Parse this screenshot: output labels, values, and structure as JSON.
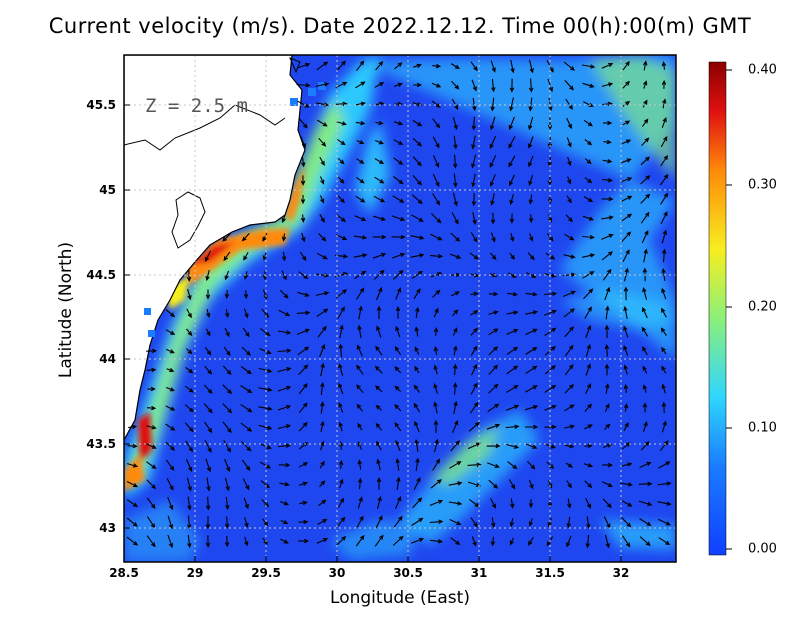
{
  "map": {
    "title": "Current velocity (m/s). Date 2022.12.12. Time 00(h):00(m) GMT",
    "xlabel": "Longitude (East)",
    "ylabel": "Latitude (North)",
    "depth_label": "Z = 2.5 m",
    "x_ticks": [
      "28.5",
      "29",
      "29.5",
      "30",
      "30.5",
      "31",
      "31.5",
      "32"
    ],
    "y_ticks": [
      "45.5",
      "45",
      "44.5",
      "44",
      "43.5",
      "43"
    ],
    "colorbar": {
      "min": 0.0,
      "max": 0.4,
      "labels": [
        "0.40",
        "0.30",
        "0.20",
        "0.10",
        "0.00"
      ],
      "colors": [
        "#1040ff",
        "#1a7cff",
        "#2fd6ff",
        "#8cf07a",
        "#f7ee1f",
        "#ff8a0a",
        "#e01010",
        "#8b0000"
      ]
    },
    "land_color": "#ffffff",
    "arrow_color": "#000000",
    "grid": true
  }
}
